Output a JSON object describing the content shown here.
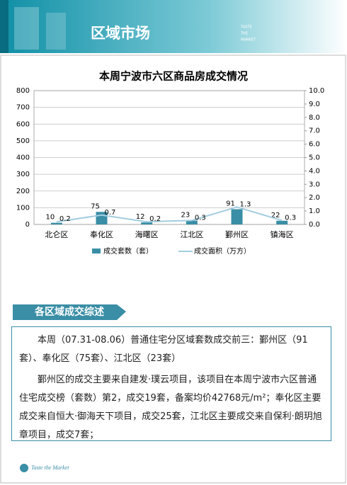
{
  "header": {
    "title": "区域市场",
    "tagline": [
      "TASTE",
      "THE",
      "MARKET"
    ]
  },
  "chart_data": {
    "type": "bar_line",
    "title": "本周宁波市六区商品房成交情况",
    "categories": [
      "北仑区",
      "奉化区",
      "海曙区",
      "江北区",
      "鄞州区",
      "镇海区"
    ],
    "series": [
      {
        "name": "成交套数（套）",
        "type": "bar",
        "color": "#3a8ea5",
        "values": [
          10,
          75,
          12,
          23,
          91,
          22
        ]
      },
      {
        "name": "成交面积（万方）",
        "type": "line",
        "axis": "y2",
        "color": "#a3cde0",
        "values": [
          0.2,
          0.7,
          0.2,
          0.3,
          1.3,
          0.3
        ]
      }
    ],
    "ylim": [
      0,
      800
    ],
    "yticks": [
      0,
      100,
      200,
      300,
      400,
      500,
      600,
      700,
      800
    ],
    "y2lim": [
      0,
      10
    ],
    "y2ticks": [
      {
        "value": 0,
        "label": "0.0"
      },
      {
        "value": 1,
        "label": "1.0"
      },
      {
        "value": 2,
        "label": "2.0"
      },
      {
        "value": 3,
        "label": "3.0"
      },
      {
        "value": 4,
        "label": "4.0"
      },
      {
        "value": 5,
        "label": "5.0"
      },
      {
        "value": 6,
        "label": "6.0"
      },
      {
        "value": 7,
        "label": "7.0"
      },
      {
        "value": 8,
        "label": "8.0"
      },
      {
        "value": 9,
        "label": "9.0"
      },
      {
        "value": 10,
        "label": "10.0"
      }
    ],
    "grid": true,
    "legend": "bottom"
  },
  "section": {
    "title": "各区域成交综述",
    "paragraphs": [
      "本周（07.31-08.06）普通住宅分区域套数成交前三：鄞州区（91套）、奉化区（75套）、江北区（23套）",
      "鄞州区的成交主要来自建发·璞云项目，该项目在本周宁波市六区普通住宅成交榜（套数）第2，成交19套，备案均价42768元/m²；奉化区主要成交来自恒大·御海天下项目，成交25套，江北区主要成交来自保利·朗玥旭章项目，成交7套；"
    ]
  },
  "footer": {
    "brand": "Taste the Market"
  }
}
